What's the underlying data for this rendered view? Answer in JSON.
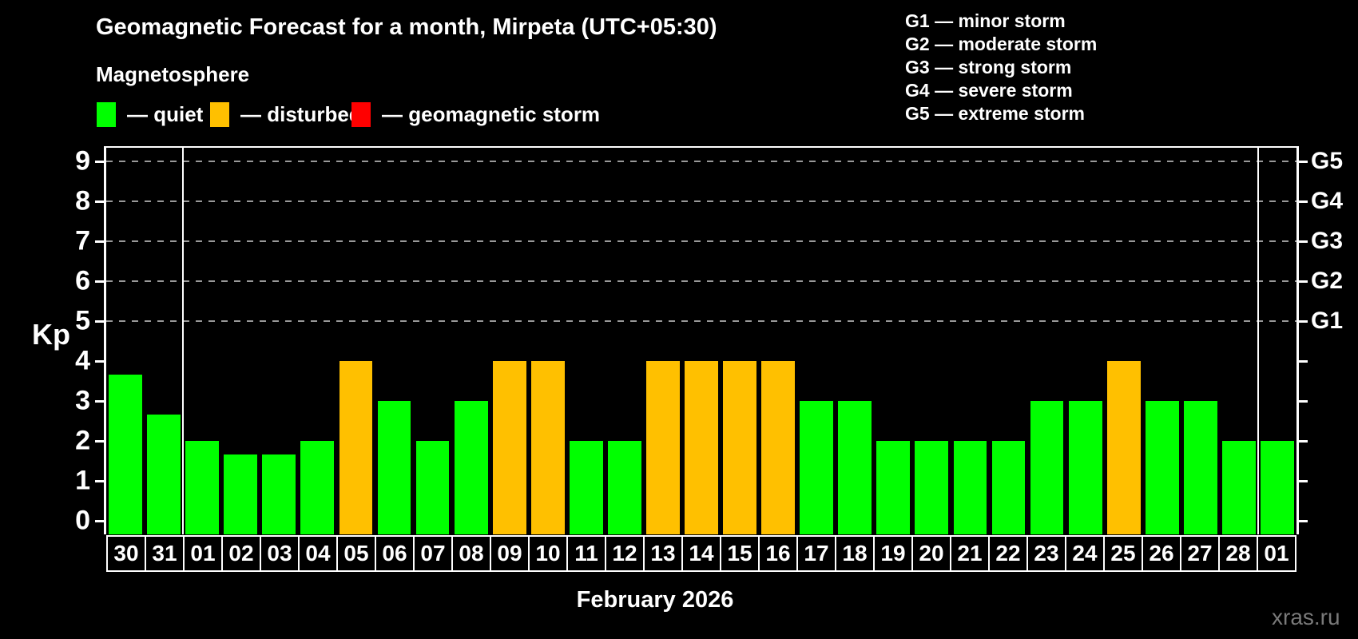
{
  "title": "Geomagnetic Forecast for a month, Mirpeta (UTC+05:30)",
  "subtitle": "Magnetosphere",
  "legend": [
    {
      "status": "quiet",
      "label": "— quiet"
    },
    {
      "status": "disturbed",
      "label": "— disturbed"
    },
    {
      "status": "storm",
      "label": "— geomagnetic storm"
    }
  ],
  "g_legend": [
    "G1 — minor storm",
    "G2 — moderate storm",
    "G3 — strong storm",
    "G4 — severe storm",
    "G5 — extreme storm"
  ],
  "colors": {
    "quiet": "#00ff00",
    "disturbed": "#ffc000",
    "storm": "#ff0000"
  },
  "watermark": "xras.ru",
  "chart_data": {
    "type": "bar",
    "title": "Geomagnetic Forecast for a month, Mirpeta (UTC+05:30)",
    "xlabel": "February 2026",
    "ylabel": "Kp",
    "ylim": [
      0,
      9
    ],
    "grid": "dashed horizontal lines at Kp 5-9 only",
    "legend_position": "top",
    "categories": [
      "30",
      "31",
      "01",
      "02",
      "03",
      "04",
      "05",
      "06",
      "07",
      "08",
      "09",
      "10",
      "11",
      "12",
      "13",
      "14",
      "15",
      "16",
      "17",
      "18",
      "19",
      "20",
      "21",
      "22",
      "23",
      "24",
      "25",
      "26",
      "27",
      "28",
      "01"
    ],
    "values": [
      3.67,
      2.67,
      2,
      1.67,
      1.67,
      2,
      4,
      3,
      2,
      3,
      4,
      4,
      2,
      2,
      4,
      4,
      4,
      4,
      3,
      3,
      2,
      2,
      2,
      2,
      3,
      3,
      4,
      3,
      3,
      2,
      2
    ],
    "statuses": [
      "quiet",
      "quiet",
      "quiet",
      "quiet",
      "quiet",
      "quiet",
      "disturbed",
      "quiet",
      "quiet",
      "quiet",
      "disturbed",
      "disturbed",
      "quiet",
      "quiet",
      "disturbed",
      "disturbed",
      "disturbed",
      "disturbed",
      "quiet",
      "quiet",
      "quiet",
      "quiet",
      "quiet",
      "quiet",
      "quiet",
      "quiet",
      "disturbed",
      "quiet",
      "quiet",
      "quiet",
      "quiet"
    ],
    "y_ticks": [
      0,
      1,
      2,
      3,
      4,
      5,
      6,
      7,
      8,
      9
    ],
    "right_axis_labels": [
      {
        "kp": 5,
        "label": "G1"
      },
      {
        "kp": 6,
        "label": "G2"
      },
      {
        "kp": 7,
        "label": "G3"
      },
      {
        "kp": 8,
        "label": "G4"
      },
      {
        "kp": 9,
        "label": "G5"
      }
    ],
    "gridlines_at": [
      5,
      6,
      7,
      8,
      9
    ],
    "month_separator_after": [
      2,
      30
    ]
  }
}
